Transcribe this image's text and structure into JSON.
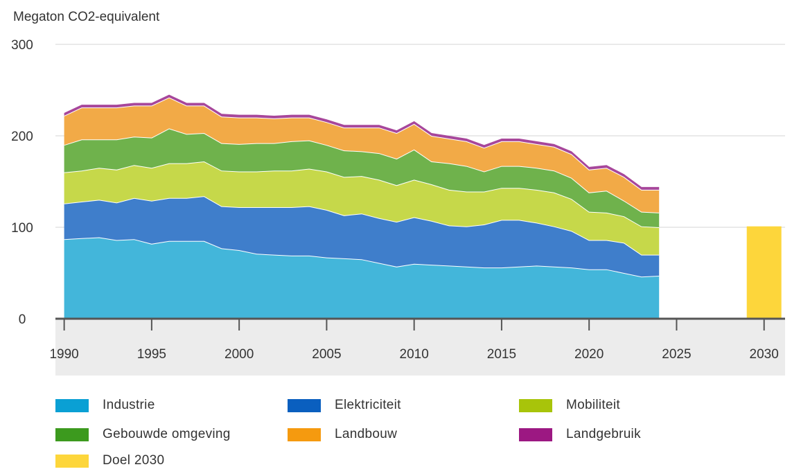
{
  "chart_data": {
    "type": "area",
    "ylabel": "Megaton CO2-equivalent",
    "ylim": [
      0,
      300
    ],
    "yticks": [
      0,
      100,
      200,
      300
    ],
    "xlim": [
      1989.5,
      2031.2
    ],
    "xticks": [
      1990,
      1995,
      2000,
      2005,
      2010,
      2015,
      2020,
      2025,
      2030
    ],
    "stacked": true,
    "x": [
      1990,
      1991,
      1992,
      1993,
      1994,
      1995,
      1996,
      1997,
      1998,
      1999,
      2000,
      2001,
      2002,
      2003,
      2004,
      2005,
      2006,
      2007,
      2008,
      2009,
      2010,
      2011,
      2012,
      2013,
      2014,
      2015,
      2016,
      2017,
      2018,
      2019,
      2020,
      2021,
      2022,
      2023,
      2024
    ],
    "series": [
      {
        "name": "Industrie",
        "color": "#43b6da",
        "values": [
          87,
          88,
          89,
          86,
          87,
          82,
          85,
          85,
          85,
          77,
          75,
          71,
          70,
          69,
          69,
          67,
          66,
          65,
          61,
          57,
          60,
          59,
          58,
          57,
          56,
          56,
          57,
          58,
          57,
          56,
          54,
          54,
          50,
          46,
          47
        ]
      },
      {
        "name": "Elektriciteit",
        "color": "#3f7ecb",
        "values": [
          39,
          40,
          41,
          41,
          45,
          47,
          47,
          47,
          49,
          46,
          47,
          51,
          52,
          53,
          54,
          52,
          47,
          50,
          49,
          49,
          51,
          48,
          44,
          44,
          47,
          52,
          51,
          47,
          44,
          40,
          32,
          32,
          33,
          24,
          23
        ]
      },
      {
        "name": "Mobiliteit",
        "color": "#c6d84a",
        "values": [
          34,
          34,
          35,
          36,
          36,
          36,
          38,
          38,
          38,
          39,
          39,
          39,
          40,
          40,
          41,
          42,
          42,
          41,
          42,
          40,
          41,
          40,
          39,
          38,
          36,
          35,
          35,
          36,
          37,
          35,
          31,
          30,
          29,
          31,
          30
        ]
      },
      {
        "name": "Gebouwde omgeving",
        "color": "#6fb24c",
        "values": [
          30,
          34,
          31,
          33,
          31,
          33,
          38,
          32,
          31,
          30,
          30,
          31,
          30,
          32,
          31,
          29,
          29,
          27,
          29,
          29,
          33,
          25,
          29,
          28,
          22,
          24,
          24,
          24,
          24,
          23,
          21,
          24,
          17,
          16,
          16
        ]
      },
      {
        "name": "Landbouw",
        "color": "#f2aa47",
        "values": [
          32,
          35,
          35,
          35,
          34,
          35,
          34,
          31,
          30,
          29,
          29,
          28,
          27,
          26,
          25,
          25,
          25,
          26,
          28,
          28,
          28,
          28,
          27,
          27,
          26,
          27,
          27,
          26,
          26,
          26,
          25,
          25,
          26,
          24,
          25
        ]
      },
      {
        "name": "Landgebruik",
        "color": "#a7479b",
        "values": [
          3,
          3,
          3,
          3,
          3,
          3,
          3,
          3,
          3,
          3,
          3,
          3,
          3,
          3,
          3,
          3,
          3,
          3,
          3,
          3,
          3,
          3,
          3,
          3,
          3,
          3,
          3,
          3,
          3,
          3,
          3,
          3,
          3,
          3,
          3
        ]
      }
    ],
    "target": {
      "name": "Doel 2030",
      "x": 2030,
      "value": 101,
      "color": "#fdd63b"
    }
  },
  "legend": [
    {
      "label": "Industrie",
      "color": "#0aa0d4"
    },
    {
      "label": "Elektriciteit",
      "color": "#0a5fbf"
    },
    {
      "label": "Mobiliteit",
      "color": "#a8c40a"
    },
    {
      "label": "Gebouwde omgeving",
      "color": "#3c9a1e"
    },
    {
      "label": "Landbouw",
      "color": "#f59a0f"
    },
    {
      "label": "Landgebruik",
      "color": "#9c1882"
    },
    {
      "label": "Doel 2030",
      "color": "#fdd63b"
    }
  ]
}
